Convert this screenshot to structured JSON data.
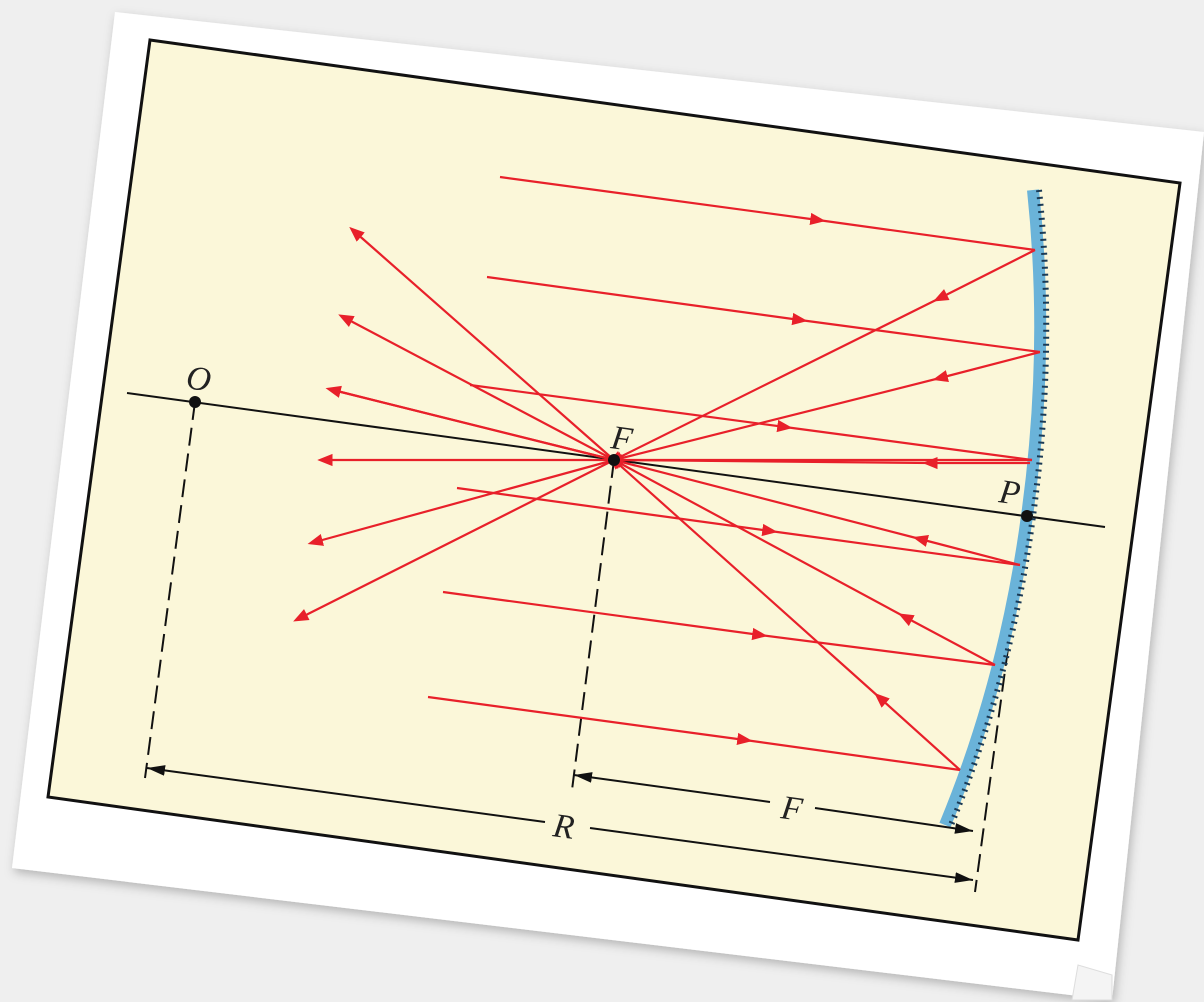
{
  "points": [
    {
      "label": "O"
    },
    {
      "label": "F"
    },
    {
      "label": "P"
    }
  ],
  "dimensions": [
    {
      "label": "F"
    },
    {
      "label": "R"
    }
  ]
}
